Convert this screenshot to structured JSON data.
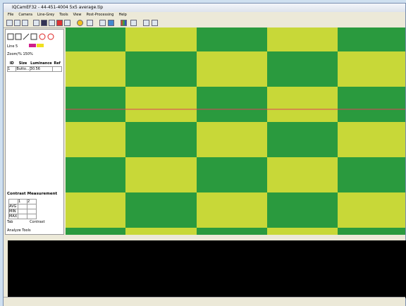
{
  "window": {
    "title": "IQCamEF32 - 44-451-4004 5x5 average.tip"
  },
  "menu": [
    "File",
    "Camera",
    "Line-Grey",
    "Tools",
    "View",
    "Post-Processing",
    "Help"
  ],
  "left_panel": {
    "line_label": "Line",
    "line_value": "5",
    "zoom_label": "Zoom/%",
    "zoom_value": "150%",
    "table": {
      "headers": [
        "ID",
        "Size",
        "Luminance",
        "Ref"
      ],
      "rows": [
        [
          "1",
          "Butto...",
          "30.56"
        ]
      ]
    },
    "contrast_title": "Contrast Measurement",
    "contrast_table": {
      "headers": [
        "1",
        "2"
      ],
      "rows": [
        "AVG",
        "MIN",
        "MAX"
      ]
    },
    "tab_label": "Tab",
    "contrast_button": "Contrast",
    "tabs": [
      "Analyze",
      "Tools"
    ]
  }
}
